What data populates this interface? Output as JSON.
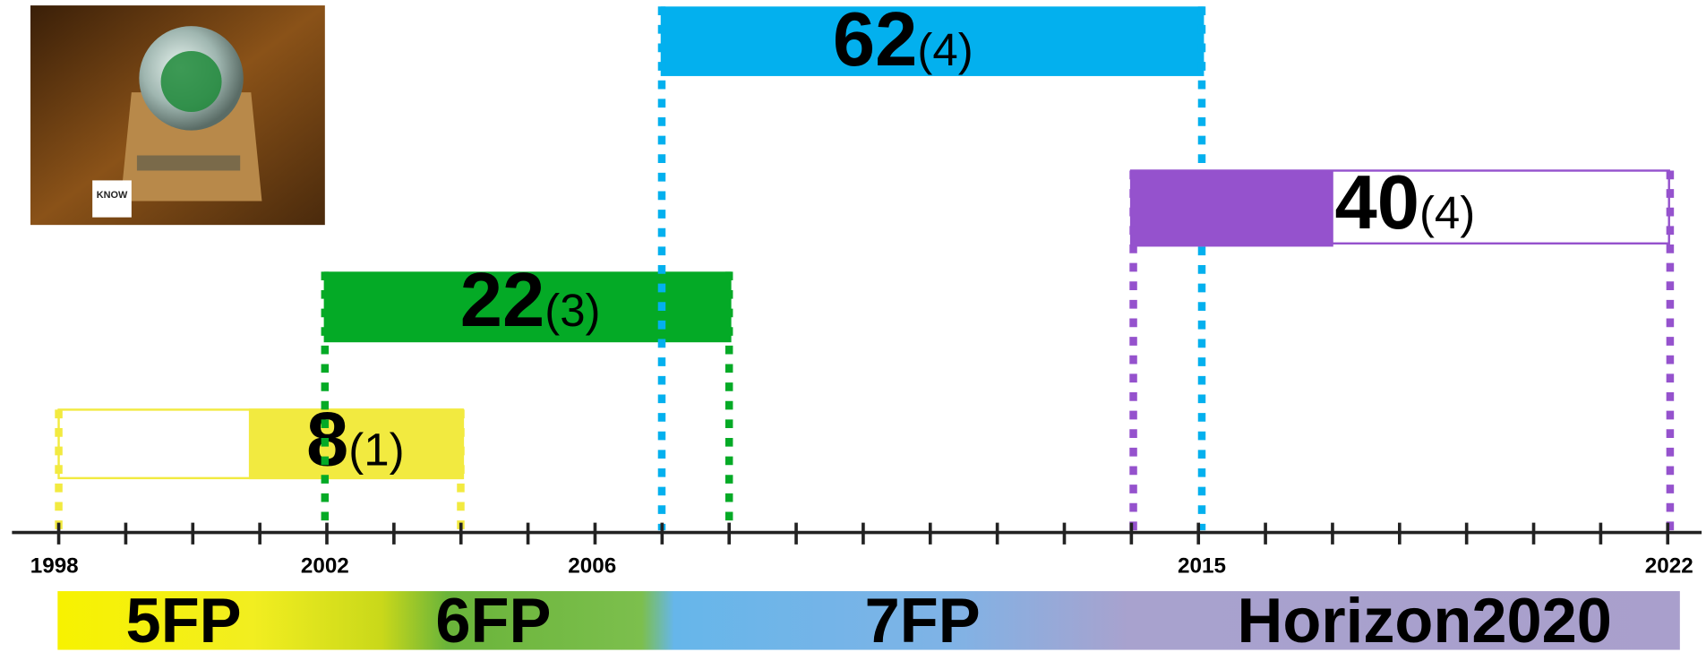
{
  "photo": {
    "label": "KNOW"
  },
  "bars": [
    {
      "value": "8",
      "count": "(1)"
    },
    {
      "value": "22",
      "count": "(3)"
    },
    {
      "value": "62",
      "count": "(4)"
    },
    {
      "value": "40",
      "count": "(4)"
    }
  ],
  "axis": {
    "years": [
      "1998",
      "2002",
      "2006",
      "2015",
      "2022"
    ]
  },
  "programmes": [
    "5FP",
    "6FP",
    "7FP",
    "Horizon2020"
  ]
}
